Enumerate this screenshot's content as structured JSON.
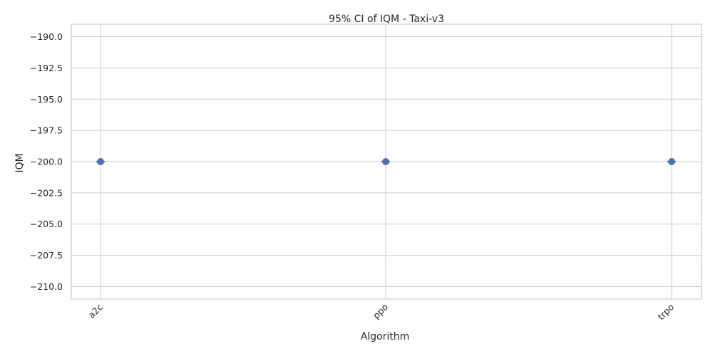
{
  "chart_data": {
    "type": "scatter",
    "title": "95% CI of IQM - Taxi-v3",
    "xlabel": "Algorithm",
    "ylabel": "IQM",
    "categories": [
      "a2c",
      "ppo",
      "trpo"
    ],
    "series": [
      {
        "values": [
          -200.0,
          -200.0,
          -200.0
        ],
        "ci_lower": [
          -200.0,
          -200.0,
          -200.0
        ],
        "ci_upper": [
          -200.0,
          -200.0,
          -200.0
        ]
      }
    ],
    "ylim": [
      -211.0,
      -189.0
    ],
    "yticks": [
      -190.0,
      -192.5,
      -195.0,
      -197.5,
      -200.0,
      -202.5,
      -205.0,
      -207.5,
      -210.0
    ],
    "ytick_labels": [
      "−190.0",
      "−192.5",
      "−195.0",
      "−197.5",
      "−200.0",
      "−202.5",
      "−205.0",
      "−207.5",
      "−210.0"
    ],
    "grid": true,
    "colors": {
      "marker": "#4c72b0",
      "grid": "#cccccc",
      "frame": "#cccccc",
      "text": "#262626"
    }
  }
}
